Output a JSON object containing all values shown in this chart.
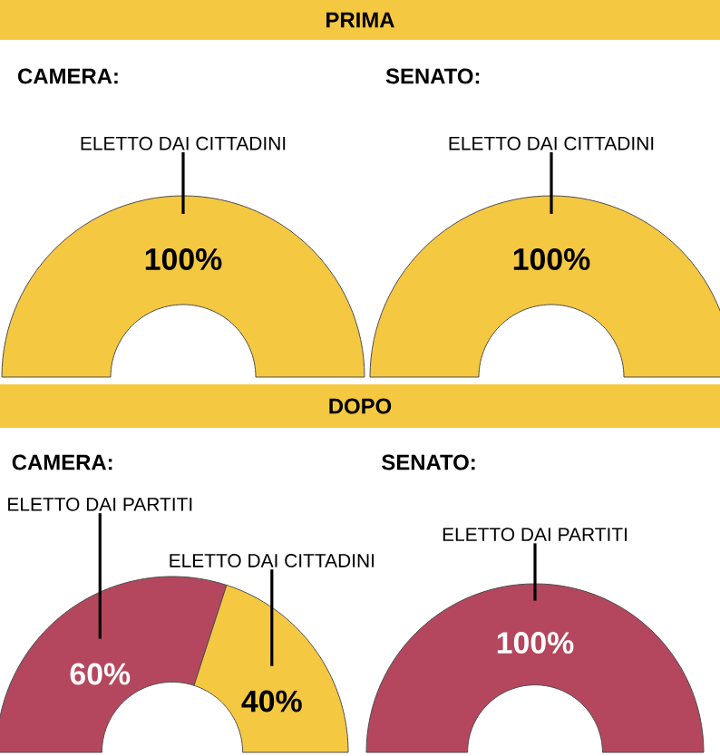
{
  "chart_data": [
    {
      "type": "other",
      "title": "PRIMA"
    },
    {
      "type": "pie",
      "title": "CAMERA:",
      "categories": [
        "ELETTO DAI CITTADINI"
      ],
      "values": [
        100
      ],
      "colors": [
        "#f5c842"
      ],
      "value_labels": [
        "100%"
      ]
    },
    {
      "type": "pie",
      "title": "SENATO:",
      "categories": [
        "ELETTO DAI CITTADINI"
      ],
      "values": [
        100
      ],
      "colors": [
        "#f5c842"
      ],
      "value_labels": [
        "100%"
      ]
    },
    {
      "type": "other",
      "title": "DOPO"
    },
    {
      "type": "donut",
      "title": "CAMERA:",
      "categories": [
        "ELETTO DAI PARTITI",
        "ELETTO DAI CITTADINI"
      ],
      "values": [
        60,
        40
      ],
      "colors": [
        "#b4475d",
        "#f5c842"
      ],
      "value_labels": [
        "60%",
        "40%"
      ]
    },
    {
      "type": "pie",
      "title": "SENATO:",
      "categories": [
        "ELETTO DAI PARTITI"
      ],
      "values": [
        100
      ],
      "colors": [
        "#b4475d"
      ],
      "value_labels": [
        "100%"
      ]
    }
  ]
}
